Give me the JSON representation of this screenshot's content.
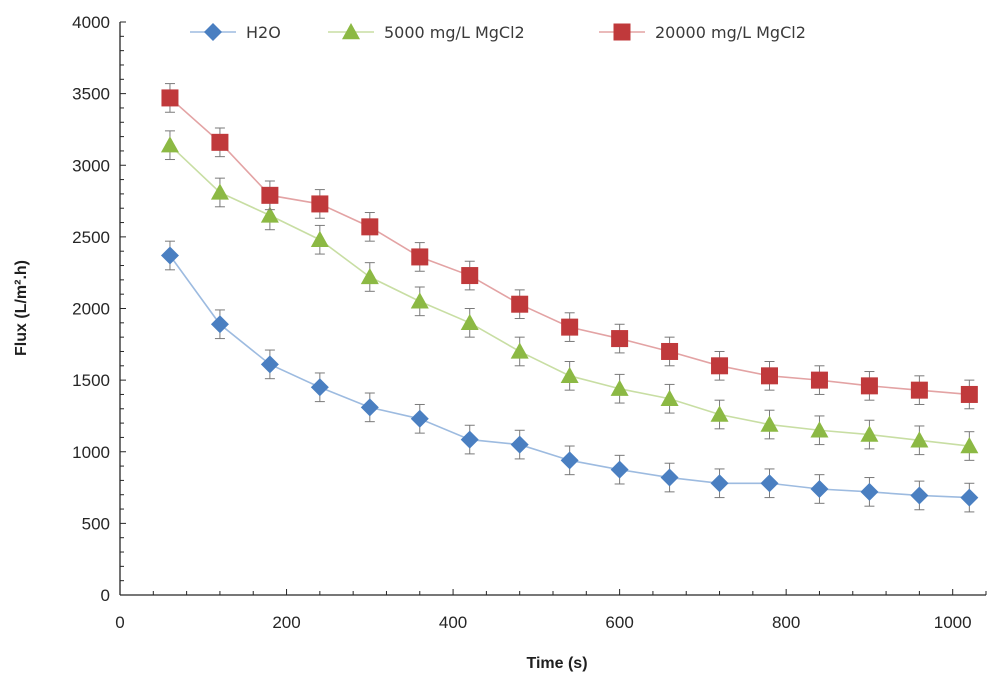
{
  "chart_data": {
    "type": "line",
    "title": "",
    "xlabel": "Time (s)",
    "ylabel": "Flux (L/m².h)",
    "xlim": [
      0,
      1040
    ],
    "ylim": [
      0,
      4000
    ],
    "x_ticks": [
      0,
      200,
      400,
      600,
      800,
      1000
    ],
    "y_ticks": [
      0,
      500,
      1000,
      1500,
      2000,
      2500,
      3000,
      3500,
      4000
    ],
    "grid": false,
    "legend_position": "top",
    "x": [
      60,
      120,
      180,
      240,
      300,
      360,
      420,
      480,
      540,
      600,
      660,
      720,
      780,
      840,
      900,
      960,
      1020
    ],
    "series": [
      {
        "name": "H2O",
        "color": "#4a7fc1",
        "line_color": "#9dbbe0",
        "marker": "diamond",
        "values": [
          2370,
          1890,
          1610,
          1450,
          1310,
          1230,
          1085,
          1050,
          940,
          875,
          820,
          780,
          780,
          740,
          720,
          695,
          680
        ],
        "error": [
          100,
          100,
          100,
          100,
          100,
          100,
          100,
          100,
          100,
          100,
          100,
          100,
          100,
          100,
          100,
          100,
          100
        ]
      },
      {
        "name": "5000 mg/L MgCl2",
        "color": "#8cb944",
        "line_color": "#c8dea3",
        "marker": "triangle",
        "values": [
          3140,
          2810,
          2650,
          2480,
          2220,
          2050,
          1900,
          1700,
          1530,
          1440,
          1370,
          1260,
          1190,
          1150,
          1120,
          1080,
          1040
        ],
        "error": [
          100,
          100,
          100,
          100,
          100,
          100,
          100,
          100,
          100,
          100,
          100,
          100,
          100,
          100,
          100,
          100,
          100
        ]
      },
      {
        "name": "20000 mg/L MgCl2",
        "color": "#c0393b",
        "line_color": "#e3a3a4",
        "marker": "square",
        "values": [
          3470,
          3160,
          2790,
          2730,
          2570,
          2360,
          2230,
          2030,
          1870,
          1790,
          1700,
          1600,
          1530,
          1500,
          1460,
          1430,
          1400
        ],
        "error": [
          100,
          100,
          100,
          100,
          100,
          100,
          100,
          100,
          100,
          100,
          100,
          100,
          100,
          100,
          100,
          100,
          100
        ]
      }
    ]
  }
}
